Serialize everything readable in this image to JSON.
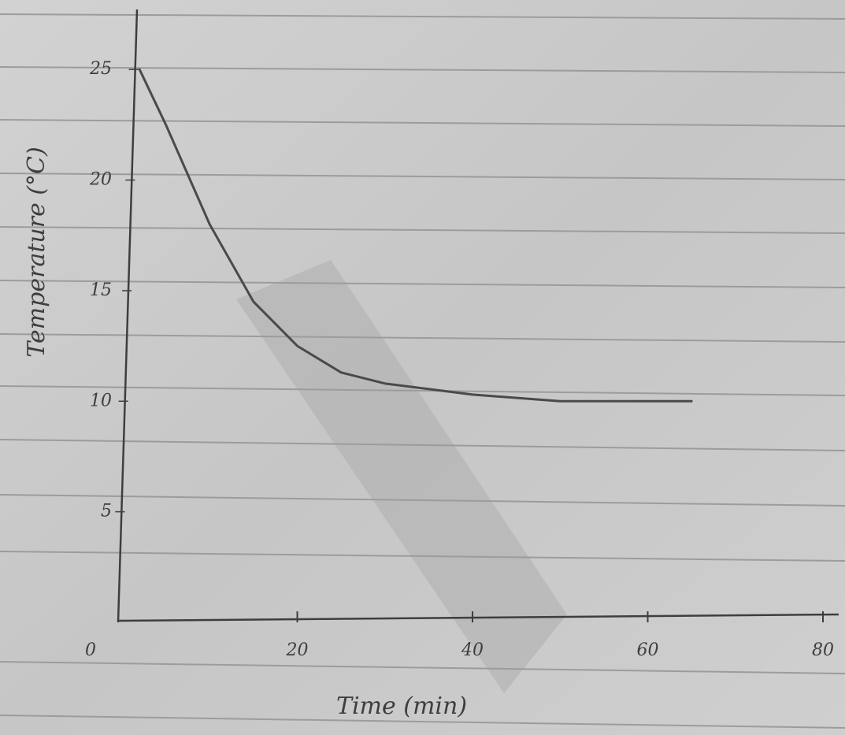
{
  "chart_data": {
    "type": "line",
    "x_label": "Time (min)",
    "y_label": "Temperature (°C)",
    "x": [
      2,
      5,
      10,
      15,
      20,
      25,
      30,
      40,
      50,
      60,
      65
    ],
    "series": [
      {
        "color": "#4a4a4a",
        "values": [
          25,
          22.5,
          18,
          14.5,
          12.5,
          11.3,
          10.8,
          10.3,
          10,
          10,
          10
        ]
      }
    ],
    "xlim": [
      0,
      80
    ],
    "xticks": [
      0,
      20,
      40,
      60,
      80
    ],
    "ylim": [
      0,
      28
    ],
    "yticks": [
      5,
      10,
      15,
      20,
      25
    ],
    "grid": false
  }
}
